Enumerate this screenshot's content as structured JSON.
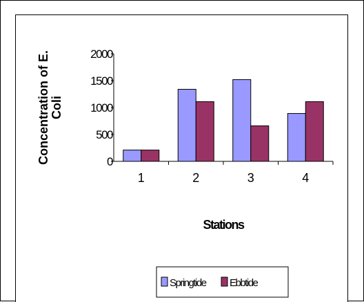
{
  "chart_data": {
    "type": "bar",
    "categories": [
      "1",
      "2",
      "3",
      "4"
    ],
    "series": [
      {
        "name": "Springtide",
        "values": [
          210,
          1340,
          1520,
          890
        ],
        "color": "#9999ff"
      },
      {
        "name": "Ebbtide",
        "values": [
          210,
          1110,
          660,
          1110
        ],
        "color": "#993366"
      }
    ],
    "title": "",
    "xlabel": "Stations",
    "ylabel": "Concentration of E. Coli",
    "ylabel_lines": [
      "Concentration of E.",
      "Coli"
    ],
    "ylim": [
      0,
      2000
    ],
    "yticks": [
      "0",
      "500",
      "1000",
      "1500",
      "2000"
    ],
    "grid": false,
    "legend_position": "bottom"
  }
}
